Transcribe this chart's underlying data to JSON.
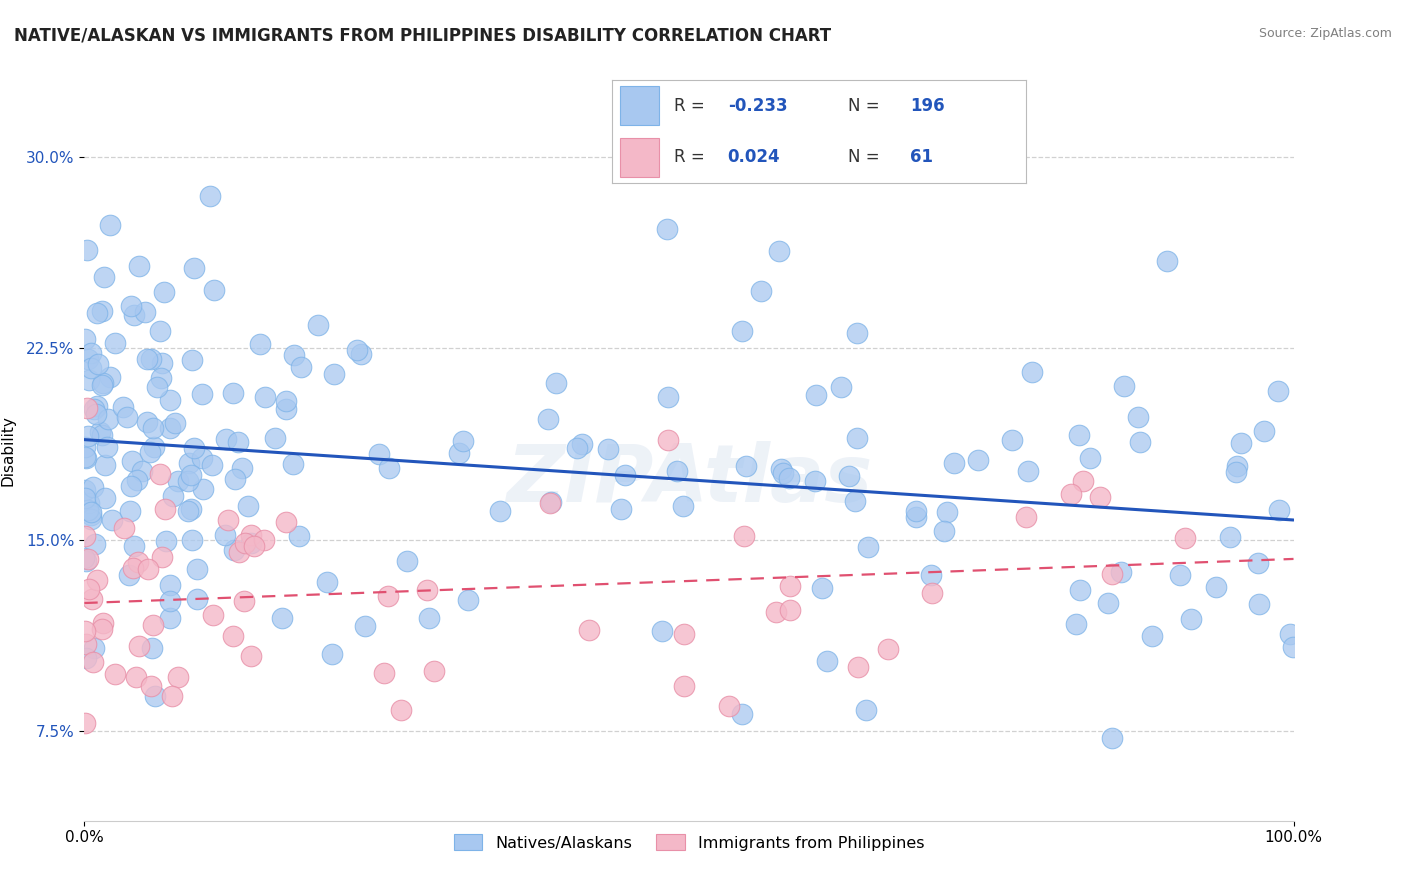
{
  "title": "NATIVE/ALASKAN VS IMMIGRANTS FROM PHILIPPINES DISABILITY CORRELATION CHART",
  "source": "Source: ZipAtlas.com",
  "ylabel": "Disability",
  "xlim": [
    0.0,
    1.0
  ],
  "ylim": [
    0.04,
    0.33
  ],
  "yticks": [
    0.075,
    0.15,
    0.225,
    0.3
  ],
  "ytick_labels": [
    "7.5%",
    "15.0%",
    "22.5%",
    "30.0%"
  ],
  "xticks": [
    0.0,
    1.0
  ],
  "xtick_labels": [
    "0.0%",
    "100.0%"
  ],
  "blue_color": "#A8C8F0",
  "blue_edge": "#7EB3E8",
  "pink_color": "#F4B8C8",
  "pink_edge": "#E890A8",
  "trend_blue": "#2255BB",
  "trend_pink": "#E05070",
  "legend_blue_label": "Natives/Alaskans",
  "legend_pink_label": "Immigrants from Philippines",
  "R_blue": -0.233,
  "N_blue": 196,
  "R_pink": 0.024,
  "N_pink": 61,
  "background_color": "#ffffff",
  "grid_color": "#cccccc",
  "title_fontsize": 12,
  "label_fontsize": 11,
  "tick_fontsize": 11,
  "watermark": "ZIPAtlas",
  "blue_trend_start_y": 0.192,
  "blue_trend_end_y": 0.155,
  "pink_trend_start_y": 0.13,
  "pink_trend_end_y": 0.135
}
